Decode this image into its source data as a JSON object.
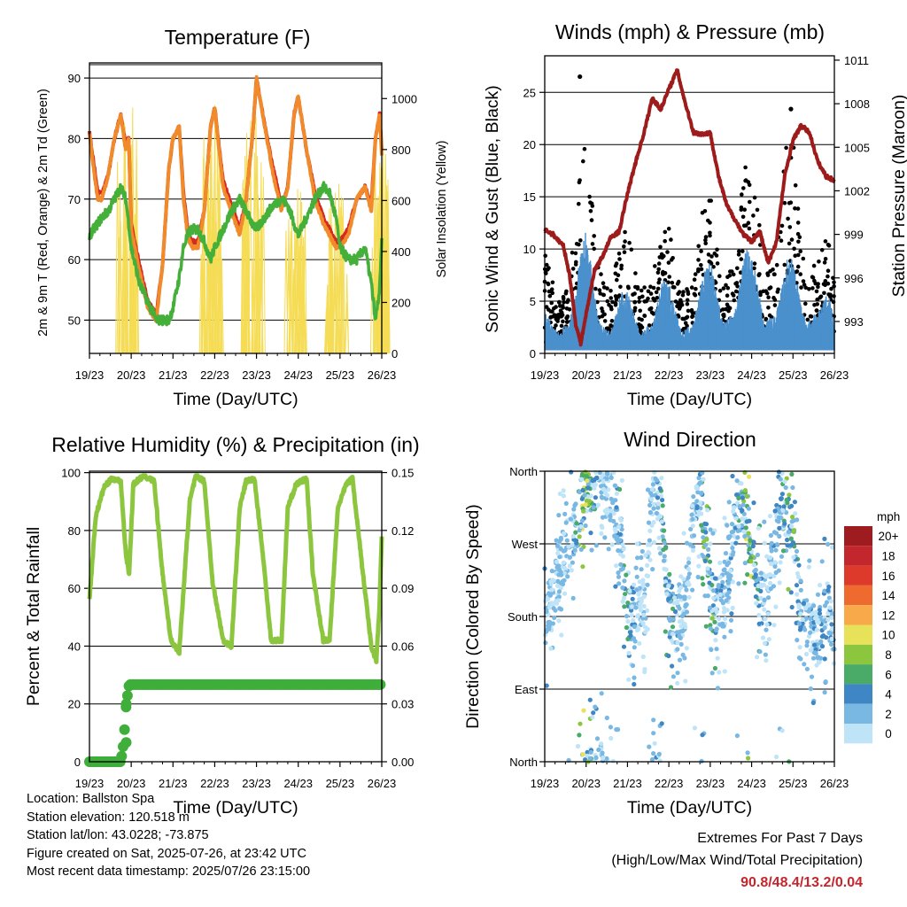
{
  "x_ticks": [
    "19/23",
    "20/23",
    "21/23",
    "22/23",
    "23/23",
    "24/23",
    "25/23",
    "26/23"
  ],
  "footer": {
    "location": "Location: Ballston Spa",
    "elevation": "Station elevation: 120.518 m",
    "latlon": "Station lat/lon: 43.0228; -73.875",
    "created": "Figure created on Sat, 2025-07-26, at 23:42 UTC",
    "timestamp": "Most recent data timestamp: 2025/07/26 23:15:00",
    "extremes_title": "Extremes For Past 7 Days",
    "extremes_subtitle": "(High/Low/Max Wind/Total Precipitation)",
    "extremes_value": "90.8/48.4/13.2/0.04"
  },
  "colors": {
    "temp2m": "#d42a1f",
    "temp9m": "#f08a2a",
    "dewpoint": "#44b03a",
    "solar": "#f5dc55",
    "wind": "#4a90cc",
    "gust": "#000000",
    "pressure": "#9e1b1b",
    "rh": "#8cc63e",
    "precip": "#3fae3a"
  },
  "chart_data": [
    {
      "type": "line",
      "title": "Temperature (F)",
      "xlabel": "Time (Day/UTC)",
      "ylabel": "2m & 9m T (Red, Orange) & 2m Td (Green)",
      "y2label": "Solar Insolation (Yellow)",
      "ylim": [
        44.5,
        92.5
      ],
      "y2lim": [
        0,
        1140
      ],
      "yticks": [
        50,
        60,
        70,
        80,
        90
      ],
      "y2ticks": [
        0,
        200,
        400,
        600,
        800,
        1000
      ],
      "x": [
        0,
        0.1,
        0.2,
        0.3,
        0.45,
        0.6,
        0.75,
        0.87,
        0.94,
        1.0,
        1.2,
        1.4,
        1.6,
        1.75,
        1.9,
        2.0,
        2.15,
        2.25,
        2.35,
        2.45,
        2.6,
        2.75,
        2.9,
        3.0,
        3.2,
        3.4,
        3.6,
        3.75,
        3.9,
        4.0,
        4.2,
        4.4,
        4.6,
        4.75,
        4.9,
        5.0,
        5.2,
        5.4,
        5.6,
        5.75,
        5.9,
        6.0,
        6.2,
        6.4,
        6.6,
        6.75,
        6.85,
        6.95,
        7.0
      ],
      "series": [
        {
          "name": "2m T",
          "values": [
            81,
            75,
            70,
            70,
            74,
            80,
            84,
            78,
            80,
            65,
            58,
            52,
            50,
            59,
            75,
            80,
            82,
            70,
            64,
            62,
            62,
            68,
            82,
            85,
            72,
            68,
            64,
            70,
            80,
            90,
            82,
            74,
            68,
            72,
            84,
            87,
            78,
            70,
            66,
            64,
            62,
            62,
            64,
            70,
            72,
            68,
            80,
            84,
            77
          ]
        },
        {
          "name": "9m T",
          "values": [
            81,
            76,
            71,
            71,
            74,
            80,
            84,
            79,
            80,
            66,
            59,
            53,
            51,
            59,
            75,
            80,
            82,
            71,
            65,
            63,
            63,
            68,
            82,
            85,
            73,
            69,
            65,
            70,
            80,
            90,
            82,
            75,
            69,
            72,
            84,
            87,
            78,
            71,
            67,
            65,
            63,
            63,
            65,
            70,
            72,
            69,
            80,
            84,
            78
          ]
        },
        {
          "name": "2m Td",
          "values": [
            64,
            65,
            66,
            67,
            68,
            70,
            72,
            70,
            66,
            62,
            56,
            53,
            50,
            50,
            50,
            52,
            57,
            62,
            64,
            65,
            65,
            63,
            60,
            62,
            65,
            68,
            70,
            68,
            66,
            65,
            67,
            69,
            70,
            69,
            66,
            64,
            67,
            70,
            72,
            71,
            67,
            62,
            60,
            60,
            62,
            56,
            50,
            55,
            63
          ]
        }
      ],
      "solar_peaks": [
        {
          "x": 0.92,
          "value": 1120
        },
        {
          "x": 2.92,
          "value": 1060
        },
        {
          "x": 3.92,
          "value": 1000
        },
        {
          "x": 4.92,
          "value": 720
        },
        {
          "x": 5.92,
          "value": 700
        },
        {
          "x": 6.92,
          "value": 920
        }
      ]
    },
    {
      "type": "scatter",
      "title": "Winds (mph) & Pressure (mb)",
      "xlabel": "Time (Day/UTC)",
      "ylabel": "Sonic Wind & Gust (Blue, Black)",
      "y2label": "Station Pressure (Maroon)",
      "ylim": [
        0,
        28.5
      ],
      "y2lim": [
        990.8,
        1011.3
      ],
      "yticks": [
        0,
        5,
        10,
        15,
        20,
        25
      ],
      "y2ticks": [
        993,
        996,
        999,
        1002,
        1005,
        1008,
        1011
      ],
      "pressure_x": [
        0,
        0.2,
        0.45,
        0.6,
        0.75,
        0.87,
        1.0,
        1.2,
        1.4,
        1.6,
        1.8,
        2.0,
        2.2,
        2.4,
        2.6,
        2.8,
        3.0,
        3.2,
        3.4,
        3.6,
        3.8,
        4.0,
        4.2,
        4.4,
        4.6,
        4.8,
        5.0,
        5.2,
        5.4,
        5.6,
        5.8,
        6.0,
        6.2,
        6.4,
        6.6,
        6.8,
        7.0
      ],
      "pressure": [
        999.3,
        999.0,
        998.2,
        996.2,
        992.8,
        991.5,
        993.5,
        996.5,
        997.5,
        998.8,
        999.2,
        1001.8,
        1004,
        1006,
        1008.4,
        1007.6,
        1009,
        1010.3,
        1008,
        1006,
        1005.9,
        1006,
        1003,
        1001,
        1000,
        999,
        998.5,
        999.2,
        997,
        998.5,
        1003,
        1005.5,
        1006.5,
        1006,
        1004,
        1003,
        1002.7
      ],
      "wind_envelope_x": [
        0,
        0.3,
        0.6,
        0.85,
        1.0,
        1.3,
        1.6,
        1.85,
        2.0,
        2.3,
        2.6,
        2.85,
        3.0,
        3.3,
        3.6,
        3.85,
        4.0,
        4.3,
        4.6,
        4.85,
        5.0,
        5.3,
        5.6,
        5.85,
        6.0,
        6.3,
        6.6,
        6.85,
        7.0
      ],
      "wind_envelope": [
        4,
        2,
        3,
        9,
        12,
        3,
        2,
        6,
        6,
        2,
        3,
        7,
        7,
        2,
        3,
        8,
        9,
        3,
        4,
        10,
        10,
        3,
        4,
        9,
        9,
        3,
        4,
        6,
        3
      ],
      "gust_envelope": [
        9,
        4,
        6,
        17,
        20,
        7,
        5,
        11,
        11,
        5,
        6,
        12,
        12,
        5,
        6,
        15,
        16,
        6,
        8,
        18,
        19,
        7,
        8,
        20,
        21,
        6,
        8,
        11,
        6
      ],
      "gust_outliers": [
        {
          "x": 0.85,
          "value": 26.5
        },
        {
          "x": 5.95,
          "value": 23.4
        }
      ]
    },
    {
      "type": "line",
      "title": "Relative Humidity (%) & Precipitation (in)",
      "xlabel": "Time (Day/UTC)",
      "ylabel": "Percent & Total Rainfall",
      "ylim": [
        0,
        100.5
      ],
      "y2lim": [
        0,
        0.1507
      ],
      "yticks": [
        0,
        20,
        40,
        60,
        80,
        100
      ],
      "y2ticks": [
        0.0,
        0.03,
        0.06,
        0.09,
        0.12,
        0.15
      ],
      "x": [
        0,
        0.15,
        0.35,
        0.55,
        0.75,
        0.87,
        0.95,
        1.05,
        1.3,
        1.55,
        1.75,
        1.95,
        2.15,
        2.4,
        2.55,
        2.75,
        2.95,
        3.2,
        3.4,
        3.6,
        3.75,
        3.95,
        4.15,
        4.35,
        4.6,
        4.75,
        4.95,
        5.2,
        5.35,
        5.6,
        5.75,
        5.95,
        6.15,
        6.3,
        6.55,
        6.75,
        6.87,
        6.95,
        7.0
      ],
      "series": [
        {
          "name": "RH",
          "values": [
            56,
            85,
            95,
            98,
            97,
            72,
            65,
            96,
            99,
            97,
            65,
            42,
            38,
            90,
            99,
            97,
            62,
            42,
            40,
            88,
            97,
            98,
            72,
            42,
            42,
            88,
            96,
            98,
            65,
            42,
            42,
            88,
            96,
            98,
            65,
            40,
            35,
            55,
            78
          ]
        }
      ],
      "precip_x": [
        0,
        0.75,
        0.82,
        0.88,
        0.95,
        7.0
      ],
      "precip": [
        0,
        0,
        0.01,
        0.03,
        0.04,
        0.04
      ]
    },
    {
      "type": "scatter",
      "title": "Wind Direction",
      "xlabel": "Time (Day/UTC)",
      "ylabel": "Direction (Colored By Speed)",
      "yticks": [
        "North",
        "East",
        "South",
        "West",
        "North"
      ],
      "ylim": [
        0,
        360
      ],
      "legend_title": "mph",
      "legend_labels": [
        "20+",
        "18",
        "16",
        "14",
        "12",
        "10",
        "8",
        "6",
        "4",
        "2",
        "0"
      ],
      "legend_colors": [
        "#9e1b1f",
        "#c4262e",
        "#de3a2c",
        "#ef6a2e",
        "#f8a94a",
        "#e8e25a",
        "#8cc63e",
        "#4aaa68",
        "#3f86c4",
        "#7ab8e4",
        "#bfe4f8"
      ],
      "dir_x": [
        0,
        0.2,
        0.4,
        0.6,
        0.8,
        1.0,
        1.2,
        1.4,
        1.6,
        1.8,
        2.0,
        2.2,
        2.4,
        2.6,
        2.8,
        3.0,
        3.2,
        3.4,
        3.6,
        3.8,
        4.0,
        4.2,
        4.4,
        4.6,
        4.8,
        5.0,
        5.2,
        5.4,
        5.6,
        5.8,
        6.0,
        6.2,
        6.4,
        6.6,
        6.8,
        7.0
      ],
      "dir_center": [
        180,
        200,
        250,
        270,
        300,
        340,
        345,
        350,
        320,
        300,
        180,
        180,
        200,
        330,
        340,
        190,
        175,
        200,
        300,
        330,
        200,
        190,
        210,
        300,
        320,
        260,
        200,
        210,
        290,
        320,
        280,
        180,
        170,
        150,
        190,
        170
      ]
    }
  ]
}
